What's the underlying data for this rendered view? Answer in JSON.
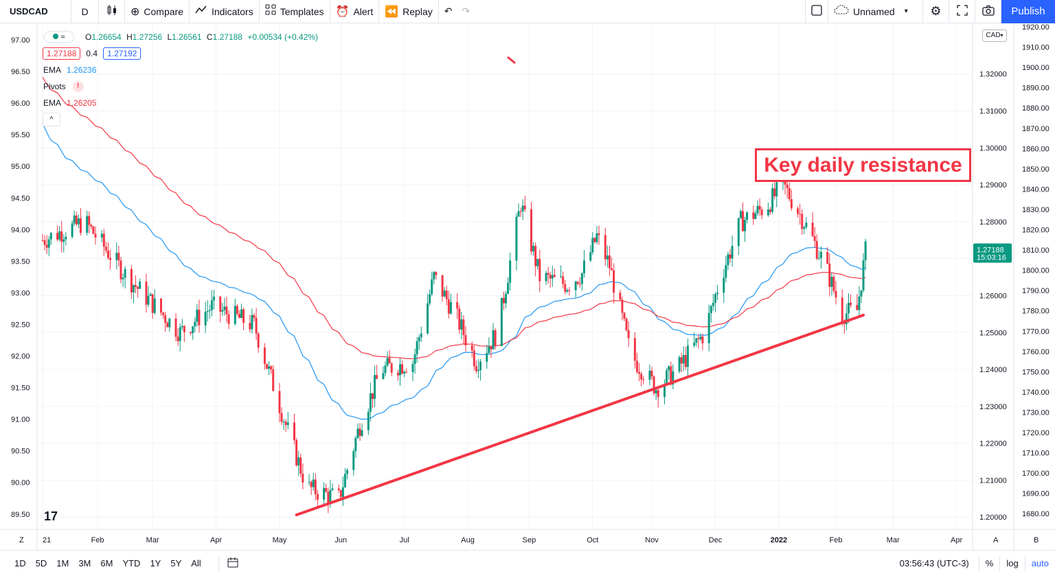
{
  "toolbar": {
    "symbol": "USDCAD",
    "interval": "D",
    "compare": "Compare",
    "indicators": "Indicators",
    "templates": "Templates",
    "alert": "Alert",
    "replay": "Replay",
    "layout_name": "Unnamed",
    "publish": "Publish"
  },
  "legend": {
    "ohlc": {
      "o_label": "O",
      "o": "1.26654",
      "h_label": "H",
      "h": "1.27256",
      "l_label": "L",
      "l": "1.26561",
      "c_label": "C",
      "c": "1.27188",
      "change": "+0.00534 (+0.42%)"
    },
    "bid": "1.27188",
    "spread": "0.4",
    "ask": "1.27192",
    "indicators": [
      {
        "name": "EMA",
        "value": "1.26236",
        "color": "#2196f3"
      },
      {
        "name": "Pivots",
        "value": "!",
        "color": "#f23645"
      },
      {
        "name": "EMA",
        "value": "1.26205",
        "color": "#f23645"
      }
    ]
  },
  "currency": "CAD",
  "annotation": "Key daily resistance",
  "logo": "17",
  "current_price": {
    "price": "1.27188",
    "countdown": "15:03:16"
  },
  "chart_data": {
    "type": "candlestick",
    "right_axis_primary": [
      "1.32000",
      "1.31000",
      "1.30000",
      "1.29000",
      "1.28000",
      "1.27000",
      "1.26000",
      "1.25000",
      "1.24000",
      "1.23000",
      "1.22000",
      "1.21000",
      "1.20000"
    ],
    "right_axis_secondary": [
      "1920.00",
      "1910.00",
      "1900.00",
      "1890.00",
      "1880.00",
      "1870.00",
      "1860.00",
      "1850.00",
      "1840.00",
      "1830.00",
      "1820.00",
      "1810.00",
      "1800.00",
      "1790.00",
      "1780.00",
      "1770.00",
      "1760.00",
      "1750.00",
      "1740.00",
      "1730.00",
      "1720.00",
      "1710.00",
      "1700.00",
      "1690.00",
      "1680.00"
    ],
    "left_axis": [
      "97.00",
      "96.50",
      "96.00",
      "95.50",
      "95.00",
      "94.50",
      "94.00",
      "93.50",
      "93.00",
      "92.50",
      "92.00",
      "91.50",
      "91.00",
      "90.50",
      "90.00",
      "89.50"
    ],
    "x_labels": [
      "21",
      "Feb",
      "Mar",
      "Apr",
      "May",
      "Jun",
      "Jul",
      "Aug",
      "Sep",
      "Oct",
      "Nov",
      "Dec",
      "2022",
      "Feb",
      "Mar",
      "Apr"
    ],
    "ylim": [
      1.1967,
      1.3337
    ],
    "trendline": {
      "from": {
        "day": 120,
        "price": 1.2006
      },
      "to": {
        "day": 388,
        "price": 1.2547
      }
    },
    "ema_fast_color": "#2196f3",
    "ema_slow_color": "#f23645",
    "up_color": "#089981",
    "down_color": "#f23645"
  },
  "bottombar": {
    "ranges": [
      "1D",
      "5D",
      "1M",
      "3M",
      "6M",
      "YTD",
      "1Y",
      "5Y",
      "All"
    ],
    "clock": "03:56:43 (UTC-3)",
    "percent": "%",
    "log": "log",
    "auto": "auto"
  },
  "axis_corner": {
    "left_bottom": "Z",
    "right_a": "A",
    "right_b": "B"
  }
}
